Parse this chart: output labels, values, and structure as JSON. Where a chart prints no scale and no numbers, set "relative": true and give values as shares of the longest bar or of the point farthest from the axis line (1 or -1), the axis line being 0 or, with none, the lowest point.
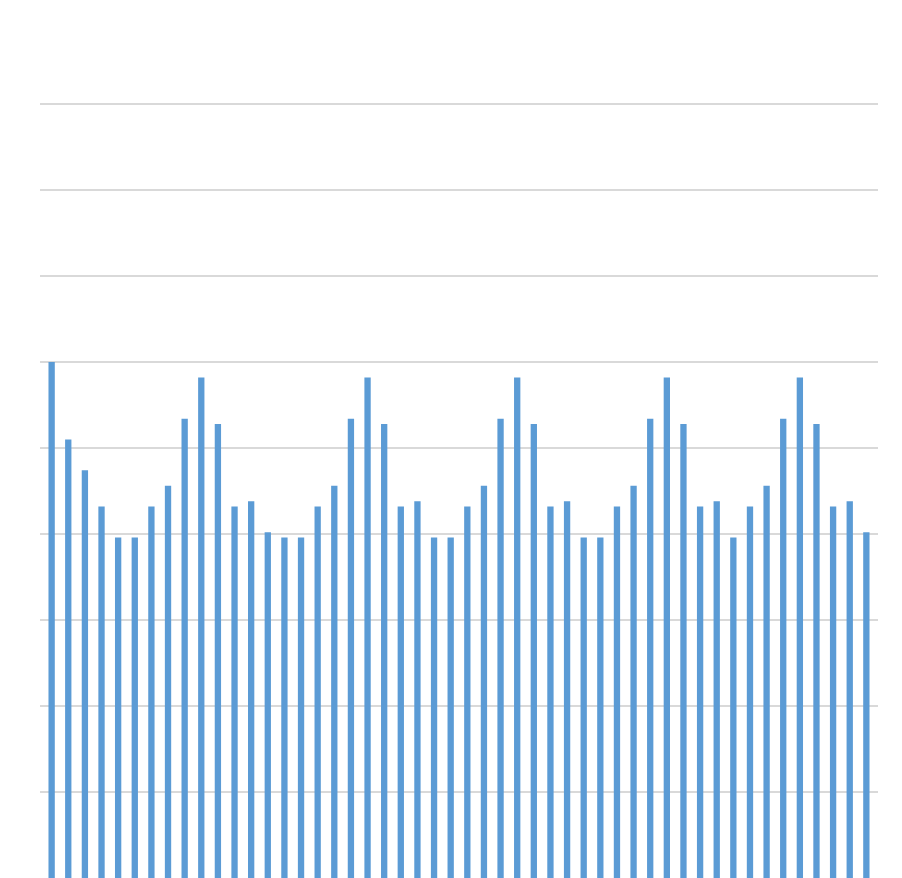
{
  "chart_data": {
    "type": "bar",
    "relative": true,
    "grid": "y",
    "color": "#5b9bd5",
    "categories": [
      null,
      null,
      null,
      null,
      null,
      null,
      null,
      null,
      null,
      null,
      null,
      null,
      null,
      null,
      null,
      null,
      null,
      null,
      null,
      null,
      null,
      null,
      null,
      null,
      null,
      null,
      null,
      null,
      null,
      null,
      null,
      null,
      null,
      null,
      null,
      null,
      null,
      null,
      null,
      null,
      null,
      null,
      null,
      null,
      null,
      null,
      null,
      null,
      null,
      null
    ],
    "values": [
      1,
      0.85,
      0.79,
      0.72,
      0.66,
      0.66,
      0.72,
      0.76,
      0.89,
      0.97,
      0.88,
      0.72,
      0.73,
      0.67,
      0.66,
      0.66,
      0.72,
      0.76,
      0.89,
      0.97,
      0.88,
      0.72,
      0.73,
      0.66,
      0.66,
      0.72,
      0.76,
      0.89,
      0.97,
      0.88,
      0.72,
      0.73,
      0.66,
      0.66,
      0.72,
      0.76,
      0.89,
      0.97,
      0.88,
      0.72,
      0.73,
      0.66,
      0.72,
      0.76,
      0.89,
      0.97,
      0.88,
      0.72,
      0.73,
      0.67
    ]
  }
}
